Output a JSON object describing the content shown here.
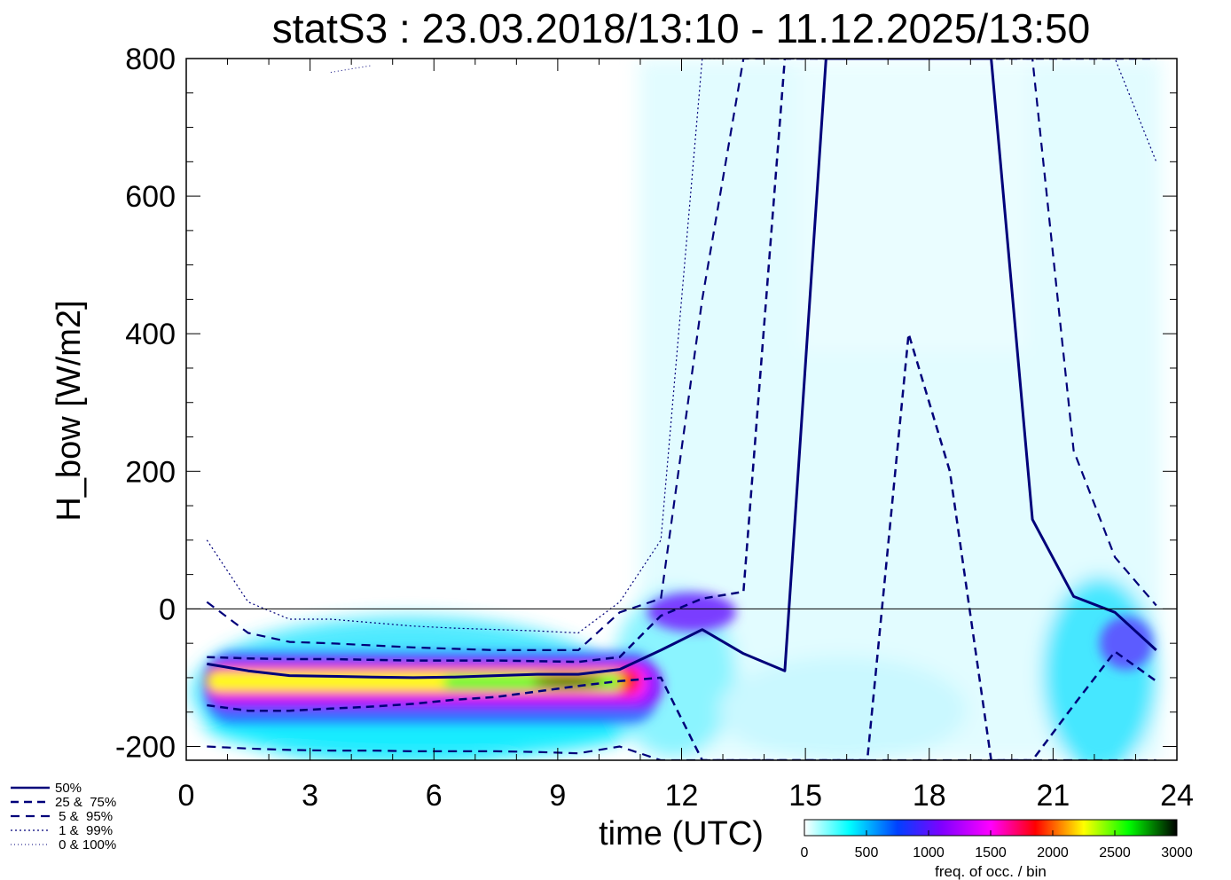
{
  "chart_data": {
    "type": "heatmap",
    "title": "statS3 : 23.03.2018/13:10 - 11.12.2025/13:50",
    "xlabel": "time (UTC)",
    "ylabel": "H_bow [W/m2]",
    "xlim": [
      0,
      24
    ],
    "ylim": [
      -220,
      800
    ],
    "x_ticks": [
      "0",
      "3",
      "6",
      "9",
      "12",
      "15",
      "18",
      "21",
      "24"
    ],
    "y_ticks": [
      "-200",
      "0",
      "200",
      "400",
      "600",
      "800"
    ],
    "colorbar": {
      "label": "freq. of occ. / bin",
      "range": [
        0,
        3000
      ],
      "ticks": [
        "0",
        "500",
        "1000",
        "1500",
        "2000",
        "2500",
        "3000"
      ],
      "colors": [
        "#ffffff",
        "#00ffff",
        "#0040ff",
        "#8000ff",
        "#ff00ff",
        "#ff0000",
        "#ffff00",
        "#00ff00",
        "#000000"
      ]
    },
    "legend": {
      "placement": "bottom-left",
      "entries": [
        "50%",
        "25 &  75%",
        " 5 &  95%",
        " 1 &  99%",
        " 0 & 100%"
      ]
    },
    "x": [
      0.5,
      1.5,
      2.5,
      3.5,
      4.5,
      5.5,
      6.5,
      7.5,
      8.5,
      9.5,
      10.5,
      11.5,
      12.5,
      13.5,
      14.5,
      15.5,
      16.5,
      17.5,
      18.5,
      19.5,
      20.5,
      21.5,
      22.5,
      23.5
    ],
    "series": [
      {
        "name": "50%",
        "style": "solid",
        "values": [
          -80,
          -90,
          -97,
          -98,
          -99,
          -100,
          -99,
          -97,
          -95,
          -95,
          -88,
          -60,
          -30,
          -65,
          -90,
          800,
          800,
          800,
          800,
          800,
          130,
          18,
          -5,
          -60
        ]
      },
      {
        "name": "25 &  75%",
        "style": "dashed",
        "values": [
          -70,
          -72,
          -73,
          -73,
          -74,
          -75,
          -75,
          -75,
          -76,
          -77,
          -70,
          -10,
          15,
          25,
          800,
          800,
          800,
          800,
          800,
          800,
          800,
          800,
          800,
          800
        ]
      },
      {
        "name": "25 &  75%",
        "style": "dashed",
        "values": [
          -140,
          -148,
          -148,
          -145,
          -142,
          -138,
          -132,
          -128,
          -120,
          -112,
          -105,
          -100,
          -220,
          -220,
          -220,
          -220,
          -220,
          400,
          200,
          -220,
          -220,
          -140,
          -62,
          -105
        ]
      },
      {
        "name": " 5 &  95%",
        "style": "dashed-long",
        "values": [
          10,
          -35,
          -48,
          -50,
          -53,
          -56,
          -58,
          -60,
          -60,
          -60,
          -5,
          15,
          450,
          800,
          800,
          800,
          800,
          800,
          800,
          800,
          800,
          230,
          75,
          5
        ]
      },
      {
        "name": " 5 &  95%",
        "style": "dashed-long",
        "values": [
          -200,
          -203,
          -205,
          -206,
          -206,
          -207,
          -207,
          -207,
          -208,
          -210,
          -200,
          -220,
          -220,
          -220,
          -220,
          -220,
          -220,
          -220,
          -220,
          -220,
          -220,
          -220,
          -220,
          -220
        ]
      },
      {
        "name": " 1 &  99%",
        "style": "dotted",
        "values": [
          100,
          10,
          -15,
          -15,
          -20,
          -25,
          -28,
          -30,
          -32,
          -35,
          10,
          100,
          800,
          800,
          800,
          800,
          800,
          800,
          800,
          800,
          800,
          800,
          800,
          650
        ]
      },
      {
        "name": " 0 & 100%",
        "style": "dotted-fine",
        "values": [
          null,
          null,
          null,
          780,
          790,
          null,
          null,
          null,
          null,
          null,
          null,
          null,
          null,
          null,
          null,
          null,
          null,
          null,
          null,
          null,
          null,
          null,
          null,
          null
        ]
      }
    ],
    "density_peaks": [
      {
        "x": 0.5,
        "y": -75,
        "freq": 2000
      },
      {
        "x": 2,
        "y": -80,
        "freq": 2400
      },
      {
        "x": 4,
        "y": -80,
        "freq": 2400
      },
      {
        "x": 6,
        "y": -82,
        "freq": 2500
      },
      {
        "x": 8,
        "y": -85,
        "freq": 2700
      },
      {
        "x": 9.5,
        "y": -88,
        "freq": 3000
      },
      {
        "x": 10.8,
        "y": -85,
        "freq": 2000
      },
      {
        "x": 11.5,
        "y": -75,
        "freq": 1200
      },
      {
        "x": 12.3,
        "y": 15,
        "freq": 900
      },
      {
        "x": 22.5,
        "y": -20,
        "freq": 700
      },
      {
        "x": 23.3,
        "y": -50,
        "freq": 800
      }
    ]
  }
}
